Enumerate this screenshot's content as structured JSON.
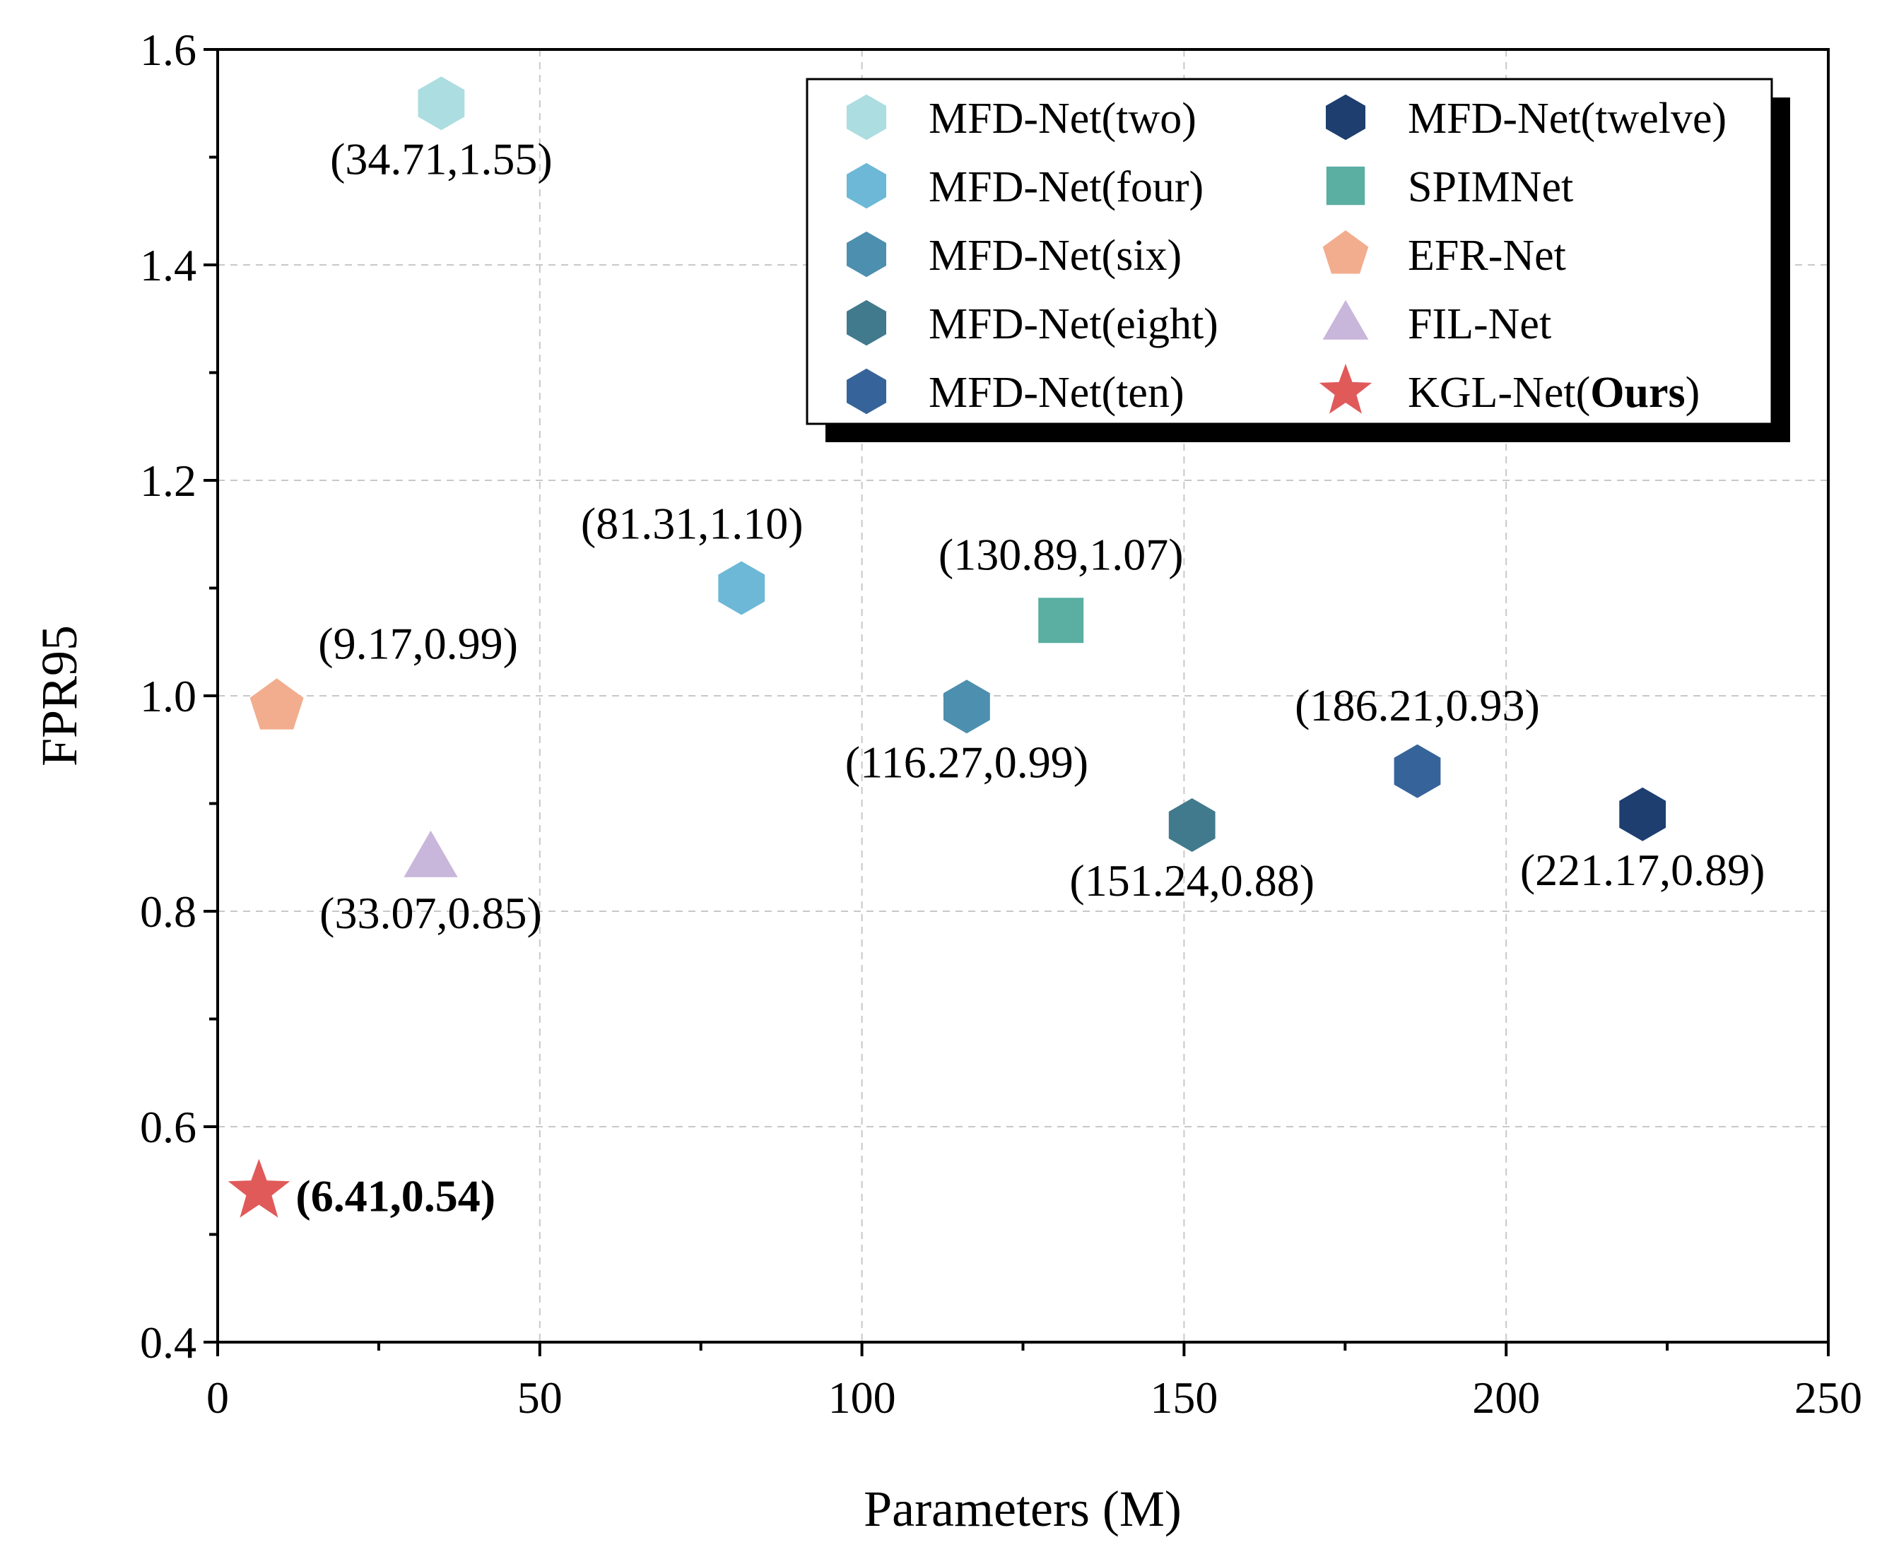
{
  "chart_data": {
    "type": "scatter",
    "title": "",
    "xlabel": "Parameters (M)",
    "ylabel": "FPR95",
    "xlim": [
      0,
      250
    ],
    "ylim": [
      0.4,
      1.6
    ],
    "xticks": [
      "0",
      "50",
      "100",
      "150",
      "200",
      "250"
    ],
    "yticks": [
      "0.4",
      "0.6",
      "0.8",
      "1.0",
      "1.2",
      "1.4",
      "1.6"
    ],
    "grid": true,
    "legend_position": "top-right",
    "series": [
      {
        "name": "MFD-Net(two)",
        "marker": "hexagon",
        "color": "#acdde0",
        "x": 34.71,
        "y": 1.55,
        "label": "(34.71,1.55)",
        "label_pos": "below",
        "bold": false
      },
      {
        "name": "MFD-Net(four)",
        "marker": "hexagon",
        "color": "#6db8d6",
        "x": 81.31,
        "y": 1.1,
        "label": "(81.31,1.10)",
        "label_pos": "above-left",
        "bold": false
      },
      {
        "name": "MFD-Net(six)",
        "marker": "hexagon",
        "color": "#4d8fae",
        "x": 116.27,
        "y": 0.99,
        "label": "(116.27,0.99)",
        "label_pos": "below",
        "bold": false
      },
      {
        "name": "MFD-Net(eight)",
        "marker": "hexagon",
        "color": "#427a8d",
        "x": 151.24,
        "y": 0.88,
        "label": "(151.24,0.88)",
        "label_pos": "below",
        "bold": false
      },
      {
        "name": "MFD-Net(ten)",
        "marker": "hexagon",
        "color": "#36649a",
        "x": 186.21,
        "y": 0.93,
        "label": "(186.21,0.93)",
        "label_pos": "above",
        "bold": false
      },
      {
        "name": "MFD-Net(twelve)",
        "marker": "hexagon",
        "color": "#1d3e6e",
        "x": 221.17,
        "y": 0.89,
        "label": "(221.17,0.89)",
        "label_pos": "below",
        "bold": false
      },
      {
        "name": "SPIMNet",
        "marker": "square",
        "color": "#5aaea2",
        "x": 130.89,
        "y": 1.07,
        "label": "(130.89,1.07)",
        "label_pos": "above",
        "bold": false
      },
      {
        "name": "EFR-Net",
        "marker": "pentagon",
        "color": "#f2ad8e",
        "x": 9.17,
        "y": 0.99,
        "label": "(9.17,0.99)",
        "label_pos": "above-right",
        "bold": false
      },
      {
        "name": "FIL-Net",
        "marker": "triangle",
        "color": "#c9b6db",
        "x": 33.07,
        "y": 0.85,
        "label": "(33.07,0.85)",
        "label_pos": "below",
        "bold": false
      },
      {
        "name": "KGL-Net(Ours)",
        "marker": "star",
        "color": "#e05a5a",
        "x": 6.41,
        "y": 0.54,
        "label": "(6.41,0.54)",
        "label_pos": "right",
        "bold": true
      }
    ],
    "legend": {
      "columns": [
        [
          "MFD-Net(two)",
          "MFD-Net(four)",
          "MFD-Net(six)",
          "MFD-Net(eight)",
          "MFD-Net(ten)"
        ],
        [
          "MFD-Net(twelve)",
          "SPIMNet",
          "EFR-Net",
          "FIL-Net",
          "KGL-Net(Ours)"
        ]
      ],
      "ours_prefix": "KGL-Net(",
      "ours_bold": "Ours",
      "ours_suffix": ")"
    }
  }
}
